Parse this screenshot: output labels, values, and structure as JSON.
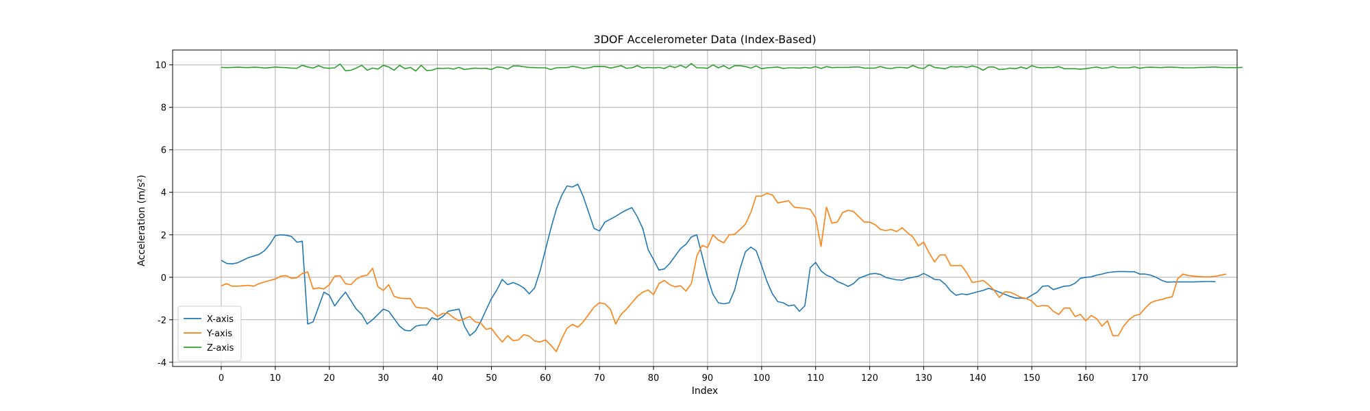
{
  "chart_data": {
    "type": "line",
    "title": "3DOF Accelerometer Data (Index-Based)",
    "xlabel": "Index",
    "ylabel": "Acceleration (m/s²)",
    "xlim": [
      -9,
      188
    ],
    "ylim": [
      -4.2,
      10.7
    ],
    "xticks": [
      0,
      10,
      20,
      30,
      40,
      50,
      60,
      70,
      80,
      90,
      100,
      110,
      120,
      130,
      140,
      150,
      160,
      170
    ],
    "yticks": [
      -4,
      -2,
      0,
      2,
      4,
      6,
      8,
      10
    ],
    "grid": true,
    "legend_position": "lower-left",
    "colors": {
      "x": "#1f77b4",
      "y": "#ff7f0e",
      "z": "#2ca02c",
      "grid": "#b0b0b0"
    },
    "series": [
      {
        "name": "X-axis",
        "values": [
          0.8,
          0.65,
          0.63,
          0.68,
          0.8,
          0.92,
          1.0,
          1.08,
          1.25,
          1.55,
          1.96,
          2.0,
          1.98,
          1.92,
          1.65,
          1.7,
          -2.2,
          -2.1,
          -1.4,
          -0.7,
          -0.85,
          -1.35,
          -1.0,
          -0.7,
          -1.1,
          -1.5,
          -1.75,
          -2.2,
          -2.0,
          -1.75,
          -1.5,
          -1.6,
          -1.95,
          -2.3,
          -2.5,
          -2.52,
          -2.3,
          -2.25,
          -2.25,
          -1.9,
          -2.0,
          -1.85,
          -1.6,
          -1.55,
          -1.5,
          -2.3,
          -2.75,
          -2.55,
          -2.1,
          -1.55,
          -1.0,
          -0.6,
          -0.1,
          -0.35,
          -0.25,
          -0.35,
          -0.5,
          -0.78,
          -0.5,
          0.3,
          1.3,
          2.3,
          3.2,
          3.85,
          4.3,
          4.25,
          4.38,
          3.8,
          3.05,
          2.3,
          2.18,
          2.6,
          2.73,
          2.87,
          3.03,
          3.17,
          3.28,
          2.85,
          2.3,
          1.3,
          0.83,
          0.34,
          0.39,
          0.65,
          1.0,
          1.35,
          1.55,
          1.9,
          2.0,
          1.0,
          0.0,
          -0.8,
          -1.2,
          -1.25,
          -1.2,
          -0.6,
          0.4,
          1.2,
          1.42,
          1.25,
          0.55,
          -0.2,
          -0.78,
          -1.15,
          -1.2,
          -1.35,
          -1.3,
          -1.6,
          -1.35,
          0.45,
          0.7,
          0.3,
          0.1,
          0.0,
          -0.2,
          -0.3,
          -0.43,
          -0.3,
          -0.05,
          0.05,
          0.15,
          0.18,
          0.13,
          -0.01,
          -0.07,
          -0.12,
          -0.14,
          -0.05,
          0.0,
          0.05,
          0.18,
          0.05,
          -0.1,
          -0.12,
          -0.33,
          -0.65,
          -0.85,
          -0.78,
          -0.82,
          -0.75,
          -0.68,
          -0.62,
          -0.52,
          -0.6,
          -0.7,
          -0.8,
          -0.9,
          -0.98,
          -0.98,
          -1.0,
          -0.85,
          -0.7,
          -0.42,
          -0.4,
          -0.58,
          -0.5,
          -0.42,
          -0.4,
          -0.28,
          -0.05,
          0.0,
          0.02,
          0.1,
          0.15,
          0.22,
          0.25,
          0.27,
          0.27,
          0.26,
          0.26,
          0.15,
          0.15,
          0.1,
          0.0,
          -0.14,
          -0.23,
          -0.22,
          -0.22,
          -0.22,
          -0.22,
          -0.22,
          -0.21,
          -0.2,
          -0.2,
          -0.21
        ]
      },
      {
        "name": "Y-axis",
        "values": [
          -0.4,
          -0.3,
          -0.42,
          -0.42,
          -0.4,
          -0.38,
          -0.42,
          -0.3,
          -0.22,
          -0.15,
          -0.08,
          0.05,
          0.08,
          -0.05,
          -0.02,
          0.18,
          0.25,
          -0.55,
          -0.5,
          -0.55,
          -0.35,
          0.05,
          0.07,
          -0.3,
          -0.35,
          -0.08,
          0.05,
          0.1,
          0.42,
          -0.45,
          -0.62,
          -0.35,
          -0.9,
          -0.98,
          -1.0,
          -1.0,
          -1.4,
          -1.45,
          -1.45,
          -1.6,
          -1.85,
          -1.7,
          -1.7,
          -1.9,
          -2.05,
          -1.95,
          -1.85,
          -2.1,
          -2.15,
          -2.45,
          -2.4,
          -2.75,
          -3.05,
          -2.75,
          -2.98,
          -2.95,
          -2.7,
          -2.77,
          -3.0,
          -3.05,
          -2.95,
          -3.2,
          -3.5,
          -2.9,
          -2.4,
          -2.22,
          -2.35,
          -2.1,
          -1.75,
          -1.4,
          -1.2,
          -1.25,
          -1.5,
          -2.2,
          -1.75,
          -1.5,
          -1.2,
          -0.9,
          -0.7,
          -0.6,
          -0.82,
          -0.3,
          -0.15,
          -0.35,
          -0.45,
          -0.4,
          -0.65,
          -0.3,
          1.0,
          1.5,
          1.4,
          2.0,
          1.75,
          1.62,
          2.0,
          2.02,
          2.25,
          2.5,
          3.05,
          3.82,
          3.82,
          3.95,
          3.88,
          3.5,
          3.55,
          3.6,
          3.3,
          3.27,
          3.25,
          3.2,
          2.8,
          1.45,
          3.3,
          2.55,
          2.6,
          3.05,
          3.15,
          3.1,
          2.85,
          2.6,
          2.6,
          2.48,
          2.25,
          2.2,
          2.25,
          2.15,
          2.33,
          2.1,
          1.9,
          1.48,
          1.65,
          1.15,
          0.72,
          1.05,
          1.05,
          0.55,
          0.55,
          0.55,
          0.2,
          -0.25,
          -0.2,
          -0.15,
          -0.35,
          -0.6,
          -0.95,
          -0.68,
          -0.7,
          -0.82,
          -0.95,
          -1.0,
          -1.12,
          -1.38,
          -1.33,
          -1.35,
          -1.6,
          -1.75,
          -1.45,
          -1.45,
          -1.85,
          -1.75,
          -2.05,
          -1.8,
          -1.95,
          -2.3,
          -2.05,
          -2.75,
          -2.75,
          -2.3,
          -2.0,
          -1.8,
          -1.75,
          -1.45,
          -1.2,
          -1.1,
          -1.05,
          -0.97,
          -0.92,
          -0.07,
          0.15,
          0.08,
          0.05,
          0.03,
          0.02,
          0.02,
          0.05,
          0.1,
          0.15
        ]
      },
      {
        "name": "Z-axis",
        "values": [
          9.88,
          9.87,
          9.88,
          9.89,
          9.88,
          9.87,
          9.89,
          9.88,
          9.85,
          9.87,
          9.9,
          9.88,
          9.87,
          9.85,
          9.84,
          9.98,
          9.9,
          9.85,
          9.96,
          9.86,
          9.84,
          9.86,
          10.04,
          9.72,
          9.75,
          9.85,
          9.98,
          9.75,
          9.85,
          9.8,
          9.98,
          9.9,
          9.75,
          9.98,
          9.82,
          9.88,
          9.71,
          9.98,
          9.73,
          9.75,
          9.84,
          9.83,
          9.85,
          9.8,
          9.88,
          9.78,
          9.82,
          9.85,
          9.83,
          9.84,
          9.78,
          9.9,
          9.88,
          9.8,
          9.95,
          9.95,
          9.91,
          9.88,
          9.87,
          9.86,
          9.86,
          9.78,
          9.86,
          9.87,
          9.87,
          9.93,
          9.89,
          9.83,
          9.86,
          9.92,
          9.93,
          9.92,
          9.85,
          9.9,
          9.96,
          9.84,
          9.86,
          9.96,
          9.85,
          9.88,
          9.86,
          9.88,
          9.83,
          9.95,
          9.87,
          9.98,
          9.86,
          10.06,
          9.86,
          9.86,
          9.84,
          10.0,
          9.86,
          9.96,
          9.82,
          9.96,
          9.96,
          9.92,
          9.85,
          9.95,
          9.82,
          9.86,
          9.88,
          9.9,
          9.83,
          9.86,
          9.86,
          9.85,
          9.88,
          9.85,
          9.92,
          9.83,
          9.92,
          9.87,
          9.88,
          9.88,
          9.88,
          9.9,
          9.9,
          9.85,
          9.85,
          9.85,
          9.92,
          9.85,
          9.83,
          9.88,
          9.88,
          9.85,
          9.97,
          9.86,
          9.83,
          10.0,
          9.88,
          9.85,
          9.82,
          9.92,
          9.9,
          9.92,
          9.88,
          9.95,
          9.88,
          9.75,
          9.9,
          9.9,
          9.78,
          9.8,
          9.85,
          9.82,
          9.9,
          9.82,
          9.96,
          9.88,
          9.86,
          9.88,
          9.87,
          9.92,
          9.82,
          9.82,
          9.82,
          9.8,
          9.82,
          9.86,
          9.9,
          9.84,
          9.86,
          9.92,
          9.86,
          9.86,
          9.86,
          9.91,
          9.84,
          9.88,
          9.89,
          9.88,
          9.87,
          9.89,
          9.89,
          9.88,
          9.86,
          9.86,
          9.86,
          9.88,
          9.88,
          9.89,
          9.9,
          9.88,
          9.87,
          9.87,
          9.87,
          9.88
        ]
      }
    ]
  }
}
